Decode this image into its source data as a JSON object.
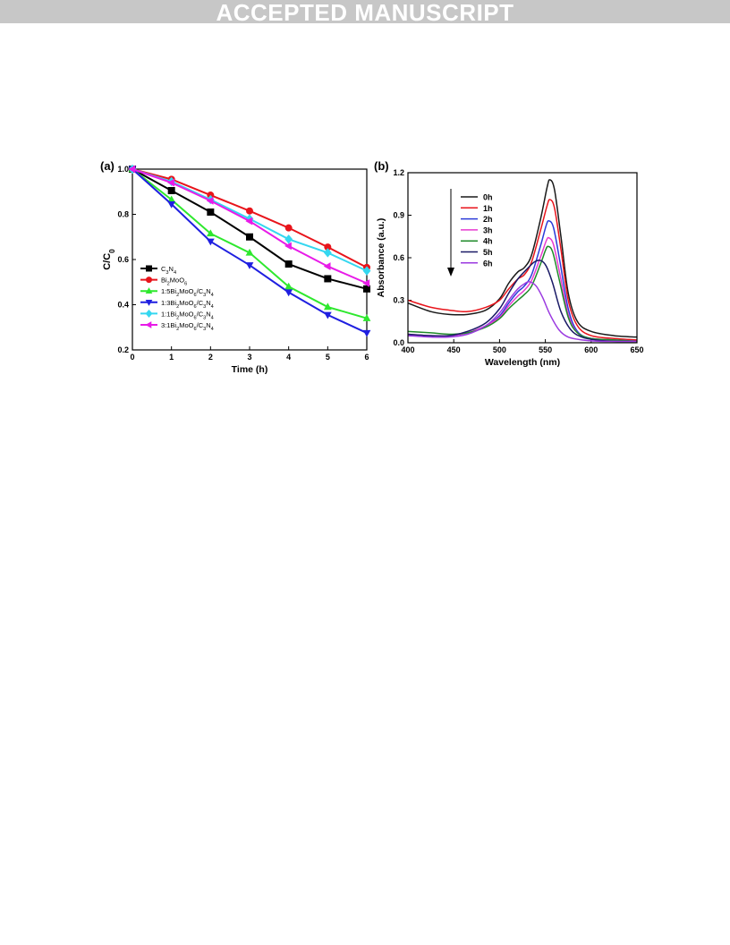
{
  "banner": {
    "text": "ACCEPTED MANUSCRIPT"
  },
  "chart_data": [
    {
      "type": "line",
      "panel_label": "(a)",
      "xlabel": "Time (h)",
      "ylabel": "C/C₀",
      "xlim": [
        0,
        6
      ],
      "ylim": [
        0.2,
        1.0
      ],
      "xticks": [
        "0",
        "1",
        "2",
        "3",
        "4",
        "5",
        "6"
      ],
      "yticks": [
        "0.2",
        "0.4",
        "0.6",
        "0.8",
        "1.0"
      ],
      "grid": false,
      "legend_position": "bottom-left",
      "x": [
        0,
        1,
        2,
        3,
        4,
        5,
        6
      ],
      "series": [
        {
          "name": "C₃N₄",
          "marker": "square",
          "color": "#000000",
          "values": [
            1.0,
            0.905,
            0.81,
            0.7,
            0.58,
            0.515,
            0.47
          ]
        },
        {
          "name": "Bi₂MoO₆",
          "marker": "circle",
          "color": "#e8141b",
          "values": [
            1.0,
            0.955,
            0.885,
            0.815,
            0.74,
            0.655,
            0.565
          ]
        },
        {
          "name": "1:5Bi₂MoO₆/C₃N₄",
          "marker": "triangle-up",
          "color": "#2ee82e",
          "values": [
            1.0,
            0.865,
            0.715,
            0.63,
            0.48,
            0.39,
            0.34
          ]
        },
        {
          "name": "1:3Bi₂MoO₆/C₃N₄",
          "marker": "triangle-down",
          "color": "#1f1fe0",
          "values": [
            1.0,
            0.845,
            0.68,
            0.575,
            0.455,
            0.355,
            0.275
          ]
        },
        {
          "name": "1:1Bi₂MoO₆/C₃N₄",
          "marker": "diamond",
          "color": "#34d7f0",
          "values": [
            1.0,
            0.945,
            0.865,
            0.78,
            0.69,
            0.63,
            0.55
          ]
        },
        {
          "name": "3:1Bi₂MoO₆/C₃N₄",
          "marker": "triangle-left",
          "color": "#e81be8",
          "values": [
            1.0,
            0.94,
            0.86,
            0.77,
            0.66,
            0.57,
            0.495
          ]
        }
      ]
    },
    {
      "type": "line",
      "panel_label": "(b)",
      "xlabel": "Wavelength (nm)",
      "ylabel": "Absorbance (a.u.)",
      "xlim": [
        400,
        650
      ],
      "ylim": [
        0.0,
        1.2
      ],
      "xticks": [
        "400",
        "450",
        "500",
        "550",
        "600",
        "650"
      ],
      "yticks": [
        "0.0",
        "0.3",
        "0.6",
        "0.9",
        "1.2"
      ],
      "grid": false,
      "legend_position": "top-left",
      "arrow": "downward",
      "series": [
        {
          "name": "0h",
          "color": "#1a1a1a",
          "points": [
            [
              400,
              0.28
            ],
            [
              425,
              0.22
            ],
            [
              445,
              0.2
            ],
            [
              465,
              0.2
            ],
            [
              485,
              0.23
            ],
            [
              500,
              0.31
            ],
            [
              510,
              0.42
            ],
            [
              520,
              0.5
            ],
            [
              527,
              0.53
            ],
            [
              535,
              0.62
            ],
            [
              545,
              0.88
            ],
            [
              552,
              1.1
            ],
            [
              555,
              1.15
            ],
            [
              560,
              1.08
            ],
            [
              567,
              0.75
            ],
            [
              575,
              0.35
            ],
            [
              585,
              0.15
            ],
            [
              600,
              0.08
            ],
            [
              625,
              0.05
            ],
            [
              650,
              0.04
            ]
          ]
        },
        {
          "name": "1h",
          "color": "#e8141b",
          "points": [
            [
              400,
              0.3
            ],
            [
              425,
              0.25
            ],
            [
              445,
              0.23
            ],
            [
              465,
              0.22
            ],
            [
              485,
              0.25
            ],
            [
              500,
              0.3
            ],
            [
              510,
              0.38
            ],
            [
              520,
              0.45
            ],
            [
              527,
              0.48
            ],
            [
              535,
              0.57
            ],
            [
              545,
              0.8
            ],
            [
              552,
              0.97
            ],
            [
              555,
              1.01
            ],
            [
              560,
              0.95
            ],
            [
              567,
              0.66
            ],
            [
              575,
              0.3
            ],
            [
              585,
              0.12
            ],
            [
              600,
              0.05
            ],
            [
              625,
              0.03
            ],
            [
              650,
              0.02
            ]
          ]
        },
        {
          "name": "2h",
          "color": "#2b3bd9",
          "points": [
            [
              400,
              0.05
            ],
            [
              425,
              0.05
            ],
            [
              445,
              0.05
            ],
            [
              465,
              0.07
            ],
            [
              485,
              0.12
            ],
            [
              500,
              0.19
            ],
            [
              510,
              0.28
            ],
            [
              520,
              0.36
            ],
            [
              527,
              0.4
            ],
            [
              535,
              0.48
            ],
            [
              545,
              0.69
            ],
            [
              551,
              0.83
            ],
            [
              554,
              0.86
            ],
            [
              559,
              0.81
            ],
            [
              566,
              0.57
            ],
            [
              575,
              0.24
            ],
            [
              585,
              0.08
            ],
            [
              600,
              0.03
            ],
            [
              625,
              0.02
            ],
            [
              650,
              0.01
            ]
          ]
        },
        {
          "name": "3h",
          "color": "#e83ad0",
          "points": [
            [
              400,
              0.06
            ],
            [
              425,
              0.05
            ],
            [
              445,
              0.05
            ],
            [
              465,
              0.07
            ],
            [
              485,
              0.12
            ],
            [
              500,
              0.18
            ],
            [
              510,
              0.26
            ],
            [
              520,
              0.33
            ],
            [
              527,
              0.37
            ],
            [
              535,
              0.44
            ],
            [
              545,
              0.61
            ],
            [
              551,
              0.72
            ],
            [
              554,
              0.74
            ],
            [
              559,
              0.69
            ],
            [
              566,
              0.48
            ],
            [
              575,
              0.2
            ],
            [
              585,
              0.07
            ],
            [
              600,
              0.03
            ],
            [
              625,
              0.02
            ],
            [
              650,
              0.01
            ]
          ]
        },
        {
          "name": "4h",
          "color": "#1f8a2a",
          "points": [
            [
              400,
              0.08
            ],
            [
              425,
              0.07
            ],
            [
              445,
              0.06
            ],
            [
              465,
              0.07
            ],
            [
              485,
              0.11
            ],
            [
              500,
              0.17
            ],
            [
              510,
              0.24
            ],
            [
              520,
              0.3
            ],
            [
              527,
              0.34
            ],
            [
              535,
              0.4
            ],
            [
              545,
              0.56
            ],
            [
              550,
              0.65
            ],
            [
              553,
              0.68
            ],
            [
              558,
              0.64
            ],
            [
              565,
              0.45
            ],
            [
              575,
              0.18
            ],
            [
              585,
              0.07
            ],
            [
              600,
              0.03
            ],
            [
              625,
              0.02
            ],
            [
              650,
              0.01
            ]
          ]
        },
        {
          "name": "5h",
          "color": "#1a1a66",
          "points": [
            [
              400,
              0.06
            ],
            [
              425,
              0.05
            ],
            [
              445,
              0.05
            ],
            [
              465,
              0.08
            ],
            [
              485,
              0.14
            ],
            [
              500,
              0.24
            ],
            [
              510,
              0.35
            ],
            [
              520,
              0.45
            ],
            [
              530,
              0.52
            ],
            [
              538,
              0.57
            ],
            [
              545,
              0.58
            ],
            [
              551,
              0.54
            ],
            [
              558,
              0.42
            ],
            [
              567,
              0.22
            ],
            [
              578,
              0.09
            ],
            [
              590,
              0.04
            ],
            [
              605,
              0.02
            ],
            [
              625,
              0.01
            ],
            [
              650,
              0.01
            ]
          ]
        },
        {
          "name": "6h",
          "color": "#9b3ae0",
          "points": [
            [
              400,
              0.05
            ],
            [
              425,
              0.04
            ],
            [
              445,
              0.04
            ],
            [
              465,
              0.06
            ],
            [
              485,
              0.12
            ],
            [
              500,
              0.21
            ],
            [
              510,
              0.3
            ],
            [
              520,
              0.38
            ],
            [
              528,
              0.42
            ],
            [
              533,
              0.43
            ],
            [
              540,
              0.4
            ],
            [
              547,
              0.32
            ],
            [
              555,
              0.2
            ],
            [
              565,
              0.09
            ],
            [
              575,
              0.04
            ],
            [
              590,
              0.02
            ],
            [
              610,
              0.01
            ],
            [
              650,
              0.01
            ]
          ]
        }
      ]
    }
  ]
}
